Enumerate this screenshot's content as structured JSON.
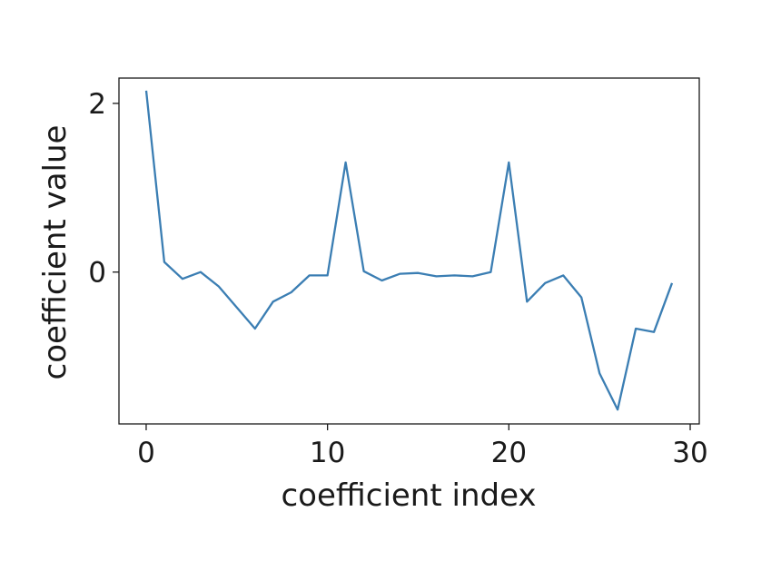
{
  "chart_data": {
    "type": "line",
    "title": "",
    "xlabel": "coefficient index",
    "ylabel": "coefficient value",
    "xlim": [
      -1.5,
      30.5
    ],
    "ylim": [
      -1.8,
      2.3
    ],
    "xticks": [
      0,
      10,
      20,
      30
    ],
    "xtick_labels": [
      "0",
      "10",
      "20",
      "30"
    ],
    "yticks": [
      0,
      2
    ],
    "ytick_labels": [
      "0",
      "2"
    ],
    "grid": false,
    "series": [
      {
        "color": "#3b7eb3",
        "x": [
          0,
          1,
          2,
          3,
          4,
          5,
          6,
          7,
          8,
          9,
          10,
          11,
          12,
          13,
          14,
          15,
          16,
          17,
          18,
          19,
          20,
          21,
          22,
          23,
          24,
          25,
          26,
          27,
          28,
          29
        ],
        "y": [
          2.15,
          0.12,
          -0.08,
          0.0,
          -0.17,
          -0.42,
          -0.67,
          -0.35,
          -0.24,
          -0.04,
          -0.04,
          1.3,
          0.01,
          -0.1,
          -0.02,
          -0.01,
          -0.05,
          -0.04,
          -0.05,
          0.0,
          1.3,
          -0.35,
          -0.13,
          -0.04,
          -0.3,
          -1.2,
          -1.63,
          -0.67,
          -0.71,
          -0.13
        ]
      }
    ]
  }
}
